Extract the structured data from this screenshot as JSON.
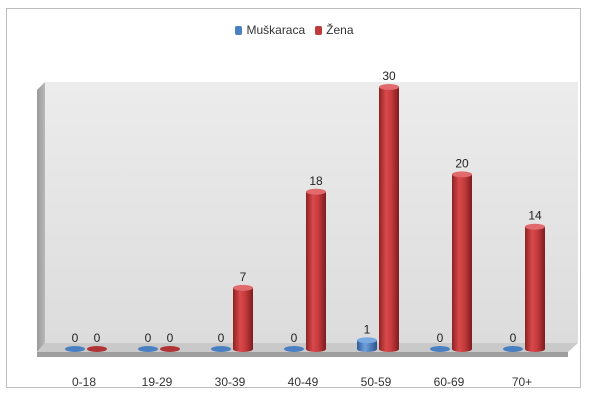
{
  "chart_data": {
    "type": "bar",
    "style": "3d-cylinder",
    "categories": [
      "0-18",
      "19-29",
      "30-39",
      "40-49",
      "50-59",
      "60-69",
      "70+"
    ],
    "series": [
      {
        "name": "Muškaraca",
        "color": "#4a7fc1",
        "values": [
          0,
          0,
          0,
          0,
          1,
          0,
          0
        ]
      },
      {
        "name": "Žena",
        "color": "#c0393b",
        "values": [
          0,
          0,
          7,
          18,
          30,
          20,
          14
        ]
      }
    ],
    "title": "",
    "xlabel": "",
    "ylabel": "",
    "ylim": [
      0,
      30
    ],
    "grid": false,
    "legend_position": "top"
  }
}
